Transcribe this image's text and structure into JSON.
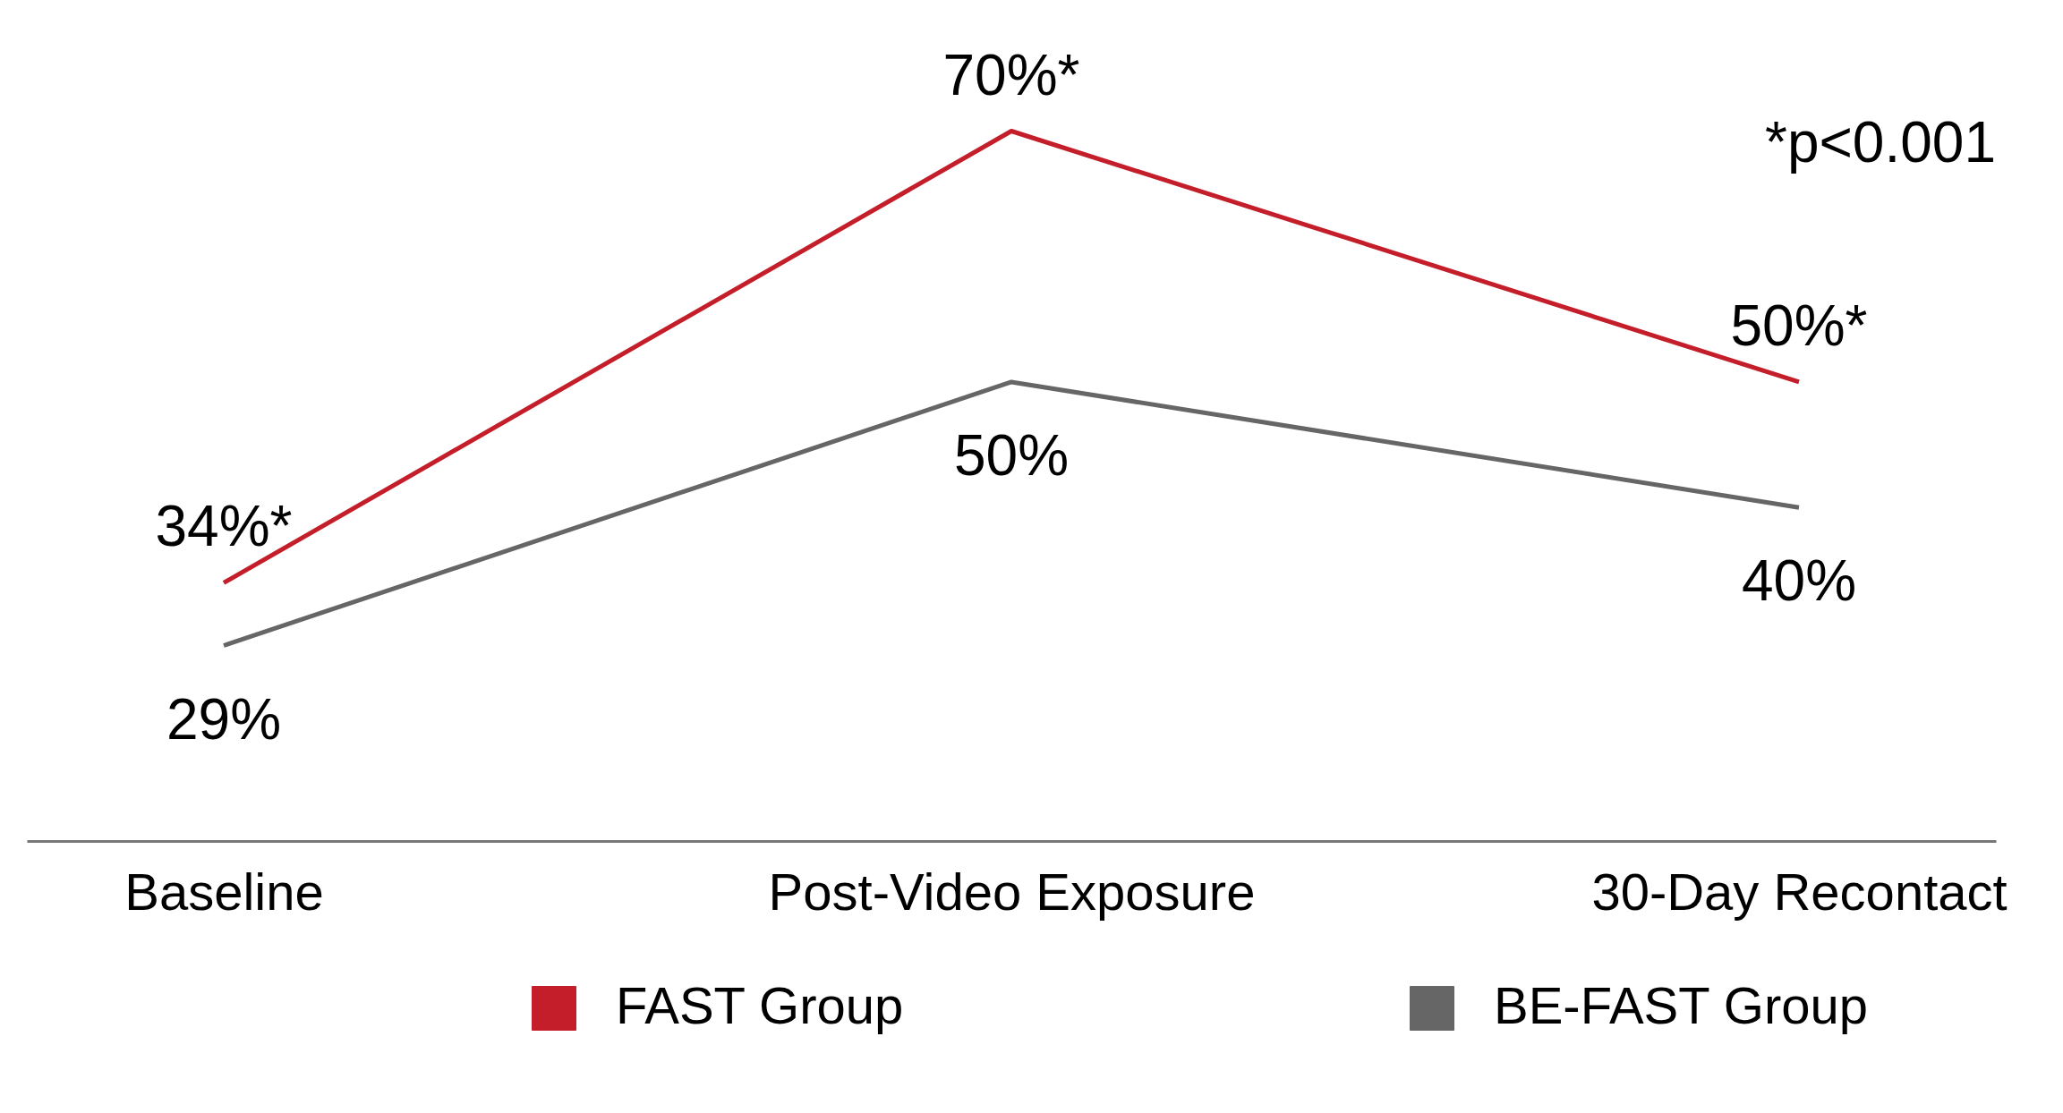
{
  "chart_data": {
    "type": "line",
    "categories": [
      "Baseline",
      "Post-Video Exposure",
      "30-Day Recontact"
    ],
    "series": [
      {
        "name": "FAST Group",
        "color": "#c41e2a",
        "values": [
          34,
          70,
          50
        ],
        "value_labels": [
          "34%*",
          "70%*",
          "50%*"
        ]
      },
      {
        "name": "BE-FAST Group",
        "color": "#666666",
        "values": [
          29,
          50,
          40
        ],
        "value_labels": [
          "29%",
          "50%",
          "40%"
        ]
      }
    ],
    "annotations": [
      "*p<0.001"
    ],
    "legend": "bottom",
    "grid": false,
    "marker": "none",
    "line_style": "solid"
  }
}
